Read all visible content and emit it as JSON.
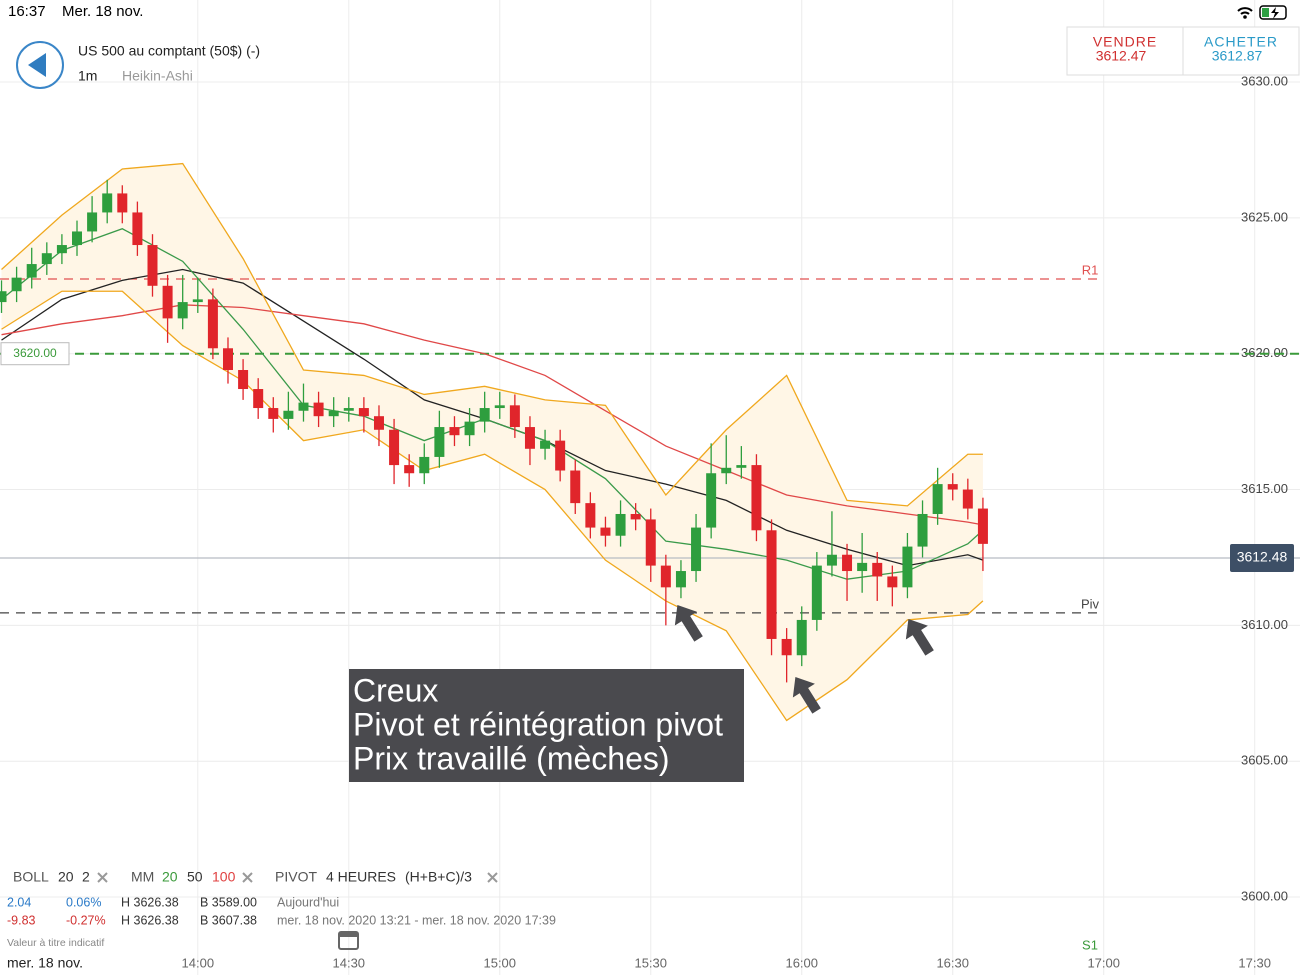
{
  "status": {
    "time": "16:37",
    "date": "Mer. 18 nov."
  },
  "header": {
    "title": "US 500 au comptant (50$) (-)",
    "interval": "1m",
    "style": "Heikin-Ashi"
  },
  "quote": {
    "sell_label": "VENDRE",
    "sell": "3612.47",
    "buy_label": "ACHETER",
    "buy": "3612.87"
  },
  "legend": {
    "boll": [
      "BOLL",
      "20",
      "2"
    ],
    "mm": [
      "MM",
      "20",
      "50",
      "100"
    ],
    "pivot": [
      "PIVOT",
      "4 HEURES",
      "(H+B+C)/3"
    ],
    "row1": [
      "2.04",
      "0.06%",
      "H 3626.38",
      "B 3589.00",
      "Aujourd'hui"
    ],
    "row2": [
      "-9.83",
      "-0.27%",
      "H 3626.38",
      "B 3607.38",
      "mer. 18 nov. 2020 13:21 - mer. 18 nov. 2020 17:39"
    ],
    "note": "Valeur à titre indicatif",
    "date": "mer. 18 nov."
  },
  "chart_data": {
    "type": "candlestick",
    "xlim": [
      800.7,
      1059.0
    ],
    "ylim": [
      3597.13,
      3633.02
    ],
    "xticks": [
      {
        "value": 840,
        "label": "14:00"
      },
      {
        "value": 870,
        "label": "14:30"
      },
      {
        "value": 900,
        "label": "15:00"
      },
      {
        "value": 930,
        "label": "15:30"
      },
      {
        "value": 960,
        "label": "16:00"
      },
      {
        "value": 990,
        "label": "16:30"
      },
      {
        "value": 1020,
        "label": "17:00"
      },
      {
        "value": 1050,
        "label": "17:30"
      }
    ],
    "yticks": [
      {
        "value": 3600,
        "label": "3600.00"
      },
      {
        "value": 3605,
        "label": "3605.00"
      },
      {
        "value": 3610,
        "label": "3610.00"
      },
      {
        "value": 3615,
        "label": "3615.00"
      },
      {
        "value": 3620,
        "label": "3620.00"
      },
      {
        "value": 3625,
        "label": "3625.00"
      },
      {
        "value": 3630,
        "label": "3630.00"
      }
    ],
    "grid": true,
    "up_color": "#2e9e3e",
    "down_color": "#e0252b",
    "x": [
      801,
      804,
      807,
      810,
      813,
      816,
      819,
      822,
      825,
      828,
      831,
      834,
      837,
      840,
      843,
      846,
      849,
      852,
      855,
      858,
      861,
      864,
      867,
      870,
      873,
      876,
      879,
      882,
      885,
      888,
      891,
      894,
      897,
      900,
      903,
      906,
      909,
      912,
      915,
      918,
      921,
      924,
      927,
      930,
      933,
      936,
      939,
      942,
      945,
      948,
      951,
      954,
      957,
      960,
      963,
      966,
      969,
      972,
      975,
      978,
      981,
      984,
      987,
      990,
      993,
      996
    ],
    "candles": [
      [
        3621.9,
        3622.7,
        3621.5,
        3622.3
      ],
      [
        3622.3,
        3623.2,
        3621.9,
        3622.8
      ],
      [
        3622.8,
        3623.9,
        3622.4,
        3623.3
      ],
      [
        3623.3,
        3624.1,
        3622.9,
        3623.7
      ],
      [
        3623.7,
        3624.4,
        3623.3,
        3624.0
      ],
      [
        3624.0,
        3624.9,
        3623.6,
        3624.5
      ],
      [
        3624.5,
        3625.8,
        3624.1,
        3625.2
      ],
      [
        3625.2,
        3626.4,
        3624.8,
        3625.9
      ],
      [
        3625.9,
        3626.2,
        3624.8,
        3625.2
      ],
      [
        3625.2,
        3625.6,
        3623.6,
        3624.0
      ],
      [
        3624.0,
        3624.4,
        3622.1,
        3622.5
      ],
      [
        3622.5,
        3622.9,
        3620.4,
        3621.3
      ],
      [
        3621.3,
        3622.9,
        3620.9,
        3621.9
      ],
      [
        3621.9,
        3622.8,
        3621.5,
        3622.0
      ],
      [
        3622.0,
        3622.4,
        3619.8,
        3620.2
      ],
      [
        3620.2,
        3620.6,
        3618.9,
        3619.4
      ],
      [
        3619.4,
        3619.8,
        3618.3,
        3618.7
      ],
      [
        3618.7,
        3619.1,
        3617.6,
        3618.0
      ],
      [
        3618.0,
        3618.4,
        3617.1,
        3617.6
      ],
      [
        3617.6,
        3618.6,
        3617.2,
        3617.9
      ],
      [
        3617.9,
        3618.9,
        3617.5,
        3618.2
      ],
      [
        3618.2,
        3618.6,
        3617.3,
        3617.7
      ],
      [
        3617.7,
        3618.4,
        3617.3,
        3617.9
      ],
      [
        3617.9,
        3618.4,
        3617.5,
        3618.0
      ],
      [
        3618.0,
        3618.4,
        3617.1,
        3617.7
      ],
      [
        3617.7,
        3618.1,
        3616.6,
        3617.2
      ],
      [
        3617.2,
        3617.6,
        3615.2,
        3615.9
      ],
      [
        3615.9,
        3616.3,
        3615.1,
        3615.6
      ],
      [
        3615.6,
        3616.7,
        3615.2,
        3616.2
      ],
      [
        3616.2,
        3617.9,
        3615.8,
        3617.3
      ],
      [
        3617.3,
        3617.7,
        3616.6,
        3617.0
      ],
      [
        3617.0,
        3618.0,
        3616.6,
        3617.5
      ],
      [
        3617.5,
        3618.6,
        3617.1,
        3618.0
      ],
      [
        3618.0,
        3618.6,
        3617.6,
        3618.1
      ],
      [
        3618.1,
        3618.5,
        3616.9,
        3617.3
      ],
      [
        3617.3,
        3617.7,
        3615.9,
        3616.5
      ],
      [
        3616.5,
        3617.2,
        3616.1,
        3616.8
      ],
      [
        3616.8,
        3617.2,
        3615.3,
        3615.7
      ],
      [
        3615.7,
        3616.1,
        3614.1,
        3614.5
      ],
      [
        3614.5,
        3614.9,
        3613.2,
        3613.6
      ],
      [
        3613.6,
        3614.0,
        3612.9,
        3613.3
      ],
      [
        3613.3,
        3614.6,
        3612.9,
        3614.1
      ],
      [
        3614.1,
        3614.5,
        3613.5,
        3613.9
      ],
      [
        3613.9,
        3614.3,
        3611.6,
        3612.2
      ],
      [
        3612.2,
        3612.6,
        3610.0,
        3611.4
      ],
      [
        3611.4,
        3612.4,
        3611.0,
        3612.0
      ],
      [
        3612.0,
        3614.1,
        3611.6,
        3613.6
      ],
      [
        3613.6,
        3616.7,
        3613.2,
        3615.6
      ],
      [
        3615.6,
        3617.0,
        3615.2,
        3615.8
      ],
      [
        3615.8,
        3616.6,
        3615.4,
        3615.9
      ],
      [
        3615.9,
        3616.3,
        3613.1,
        3613.5
      ],
      [
        3613.5,
        3613.9,
        3608.9,
        3609.5
      ],
      [
        3609.5,
        3609.9,
        3607.9,
        3608.9
      ],
      [
        3608.9,
        3610.7,
        3608.5,
        3610.2
      ],
      [
        3610.2,
        3612.7,
        3609.8,
        3612.2
      ],
      [
        3612.2,
        3614.2,
        3611.8,
        3612.6
      ],
      [
        3612.6,
        3613.0,
        3610.9,
        3612.0
      ],
      [
        3612.0,
        3613.4,
        3611.2,
        3612.3
      ],
      [
        3612.3,
        3612.7,
        3610.9,
        3611.8
      ],
      [
        3611.8,
        3612.2,
        3610.7,
        3611.4
      ],
      [
        3611.4,
        3613.4,
        3611.0,
        3612.9
      ],
      [
        3612.9,
        3614.6,
        3612.5,
        3614.1
      ],
      [
        3614.1,
        3615.8,
        3613.7,
        3615.2
      ],
      [
        3615.2,
        3615.6,
        3614.6,
        3615.0
      ],
      [
        3615.0,
        3615.4,
        3613.9,
        3614.3
      ],
      [
        3614.3,
        3614.7,
        3612.0,
        3613.0
      ]
    ],
    "line_x": [
      801,
      813,
      825,
      837,
      849,
      861,
      873,
      885,
      897,
      909,
      921,
      933,
      945,
      957,
      969,
      981,
      993,
      996
    ],
    "bollinger": {
      "color": "#f0a81e",
      "fill": "#fff6e6",
      "middle_color": "#3a9a4a",
      "upper": [
        3623.1,
        3625.1,
        3626.8,
        3627.0,
        3623.5,
        3619.4,
        3619.2,
        3618.5,
        3618.8,
        3618.3,
        3618.1,
        3614.8,
        3617.2,
        3619.2,
        3614.6,
        3614.4,
        3616.3,
        3616.3
      ],
      "middle": [
        3622.0,
        3623.8,
        3624.6,
        3623.4,
        3620.9,
        3618.1,
        3617.7,
        3616.8,
        3617.6,
        3616.8,
        3615.4,
        3613.1,
        3612.8,
        3612.4,
        3611.7,
        3612.0,
        3613.0,
        3613.5
      ],
      "lower": [
        3620.9,
        3622.3,
        3622.3,
        3620.3,
        3619.0,
        3616.8,
        3617.2,
        3615.7,
        3616.3,
        3615.0,
        3612.4,
        3610.9,
        3609.8,
        3606.5,
        3608.0,
        3610.2,
        3610.4,
        3610.9
      ]
    },
    "moving_averages": [
      {
        "color": "#222222",
        "values": [
          3620.5,
          3622.0,
          3622.7,
          3623.1,
          3622.6,
          3621.2,
          3619.8,
          3618.3,
          3617.6,
          3616.8,
          3615.7,
          3615.2,
          3614.6,
          3613.5,
          3612.8,
          3612.2,
          3612.6,
          3612.4
        ]
      },
      {
        "color": "#e04848",
        "values": [
          3620.7,
          3621.1,
          3621.4,
          3621.8,
          3621.7,
          3621.4,
          3621.1,
          3620.5,
          3620.0,
          3619.2,
          3617.9,
          3616.6,
          3615.7,
          3614.8,
          3614.4,
          3614.1,
          3613.8,
          3613.7
        ]
      }
    ],
    "levels": [
      {
        "label": "R1",
        "value": 3622.75,
        "color": "#e05050"
      },
      {
        "label": "Piv",
        "value": 3610.46,
        "color": "#444444"
      }
    ],
    "order_level": {
      "value": 3620,
      "value_label": "3620.00",
      "color": "#3a9a3a"
    },
    "current_price": 3612.48,
    "s1_label": "S1",
    "annotation": [
      "Creux",
      "Pivot et réintégration pivot",
      "Prix travaillé (mèches)"
    ]
  }
}
